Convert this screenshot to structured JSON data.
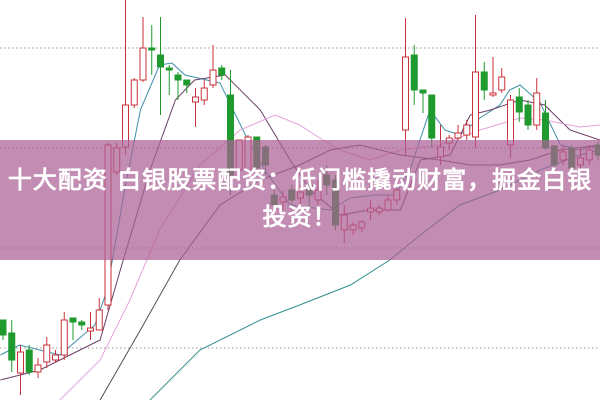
{
  "banner": {
    "title": "十大配资 白银股票配资：低门槛撬动财富，掘金白银投资！"
  },
  "chart_data": {
    "type": "candlestick",
    "title": "",
    "xlabel": "",
    "ylabel": "",
    "grid": "horizontal dotted",
    "colors": {
      "up": "#c8303a",
      "down": "#1f9a2e",
      "ma_lines": [
        "#3b8fa8",
        "#6b3d66",
        "#e3a2dc",
        "#5a4c55",
        "#2f8f8f"
      ],
      "banner": "#ac6096"
    },
    "candles_ohlc": [
      [
        80,
        80,
        60,
        65
      ],
      [
        67,
        80,
        28,
        40
      ],
      [
        27,
        55,
        5,
        48
      ],
      [
        50,
        55,
        25,
        28
      ],
      [
        28,
        42,
        22,
        35
      ],
      [
        38,
        63,
        32,
        55
      ],
      [
        40,
        50,
        38,
        45
      ],
      [
        45,
        88,
        40,
        80
      ],
      [
        82,
        82,
        60,
        78
      ],
      [
        78,
        80,
        70,
        75
      ],
      [
        69,
        88,
        60,
        72
      ],
      [
        70,
        102,
        70,
        90
      ],
      [
        95,
        257,
        90,
        255
      ],
      [
        228,
        257,
        225,
        252
      ],
      [
        253,
        400,
        245,
        295
      ],
      [
        295,
        322,
        292,
        320
      ],
      [
        320,
        383,
        318,
        352
      ],
      [
        352,
        375,
        325,
        350
      ],
      [
        345,
        383,
        285,
        333
      ],
      [
        332,
        335,
        305,
        330
      ],
      [
        325,
        328,
        300,
        320
      ],
      [
        320,
        320,
        307,
        315
      ],
      [
        298,
        312,
        273,
        303
      ],
      [
        300,
        320,
        295,
        312
      ],
      [
        315,
        355,
        312,
        330
      ],
      [
        332,
        335,
        320,
        325
      ],
      [
        305,
        330,
        205,
        225
      ],
      [
        230,
        260,
        225,
        260
      ],
      [
        230,
        265,
        230,
        263
      ],
      [
        263,
        263,
        228,
        232
      ],
      [
        253,
        255,
        225,
        235
      ],
      [
        205,
        210,
        190,
        195
      ],
      [
        198,
        210,
        190,
        203
      ],
      [
        210,
        215,
        195,
        200
      ],
      [
        202,
        215,
        195,
        208
      ],
      [
        215,
        220,
        190,
        205
      ],
      [
        200,
        220,
        195,
        210
      ],
      [
        225,
        235,
        205,
        215
      ],
      [
        220,
        225,
        170,
        175
      ],
      [
        170,
        195,
        157,
        185
      ],
      [
        170,
        178,
        165,
        175
      ],
      [
        172,
        180,
        168,
        178
      ],
      [
        188,
        200,
        180,
        192
      ],
      [
        188,
        195,
        185,
        192
      ],
      [
        190,
        205,
        188,
        200
      ],
      [
        200,
        212,
        195,
        210
      ],
      [
        270,
        382,
        245,
        343
      ],
      [
        345,
        355,
        295,
        310
      ],
      [
        310,
        310,
        287,
        307
      ],
      [
        305,
        305,
        252,
        262
      ],
      [
        243,
        275,
        235,
        253
      ],
      [
        257,
        265,
        250,
        262
      ],
      [
        262,
        275,
        260,
        267
      ],
      [
        265,
        280,
        260,
        275
      ],
      [
        263,
        385,
        252,
        328
      ],
      [
        328,
        338,
        300,
        310
      ],
      [
        305,
        343,
        303,
        307
      ],
      [
        310,
        332,
        307,
        323
      ],
      [
        255,
        305,
        242,
        300
      ],
      [
        303,
        312,
        278,
        288
      ],
      [
        295,
        300,
        270,
        275
      ],
      [
        275,
        322,
        270,
        307
      ],
      [
        287,
        300,
        250,
        252
      ],
      [
        254,
        255,
        230,
        235
      ],
      [
        240,
        255,
        235,
        248
      ],
      [
        252,
        255,
        228,
        232
      ],
      [
        235,
        252,
        230,
        242
      ],
      [
        240,
        255,
        235,
        250
      ],
      [
        255,
        258,
        240,
        245
      ]
    ],
    "moving_averages": [
      [
        [
          -0.3,
          45
        ],
        [
          1.9,
          55
        ],
        [
          6.5,
          45
        ],
        [
          10.5,
          75
        ],
        [
          11.9,
          110
        ],
        [
          13.9,
          210
        ],
        [
          15.7,
          290
        ],
        [
          17.9,
          335
        ],
        [
          19.3,
          337
        ],
        [
          20.8,
          325
        ],
        [
          24.8,
          317
        ],
        [
          27.7,
          265
        ],
        [
          29.9,
          230
        ],
        [
          32.8,
          195
        ],
        [
          37.4,
          190
        ],
        [
          39.7,
          202
        ],
        [
          42.5,
          205
        ],
        [
          44.8,
          205
        ],
        [
          46.5,
          230
        ],
        [
          48.8,
          290
        ],
        [
          50.5,
          270
        ],
        [
          52.2,
          265
        ],
        [
          54.5,
          282
        ],
        [
          56.8,
          295
        ],
        [
          57.9,
          310
        ],
        [
          59.1,
          315
        ],
        [
          61.4,
          297
        ],
        [
          63.7,
          255
        ],
        [
          65.9,
          250
        ],
        [
          68.2,
          255
        ]
      ],
      [
        [
          -0.3,
          20
        ],
        [
          4.2,
          30
        ],
        [
          11.1,
          60
        ],
        [
          13.4,
          130
        ],
        [
          16.8,
          230
        ],
        [
          19.7,
          300
        ],
        [
          21.9,
          320
        ],
        [
          25.4,
          325
        ],
        [
          29.4,
          290
        ],
        [
          32.8,
          240
        ],
        [
          35.1,
          210
        ],
        [
          38.5,
          185
        ],
        [
          41.9,
          190
        ],
        [
          45.4,
          190
        ],
        [
          47.7,
          240
        ],
        [
          51.1,
          245
        ],
        [
          53.4,
          285
        ],
        [
          55.7,
          290
        ],
        [
          59.1,
          300
        ],
        [
          61.9,
          295
        ],
        [
          64.8,
          270
        ],
        [
          68.2,
          260
        ]
      ],
      [
        [
          6.5,
          0
        ],
        [
          11.1,
          40
        ],
        [
          14.5,
          100
        ],
        [
          17.9,
          170
        ],
        [
          22.5,
          235
        ],
        [
          27.1,
          270
        ],
        [
          31.1,
          285
        ],
        [
          33.9,
          275
        ],
        [
          36.2,
          262
        ],
        [
          38.5,
          250
        ],
        [
          41.9,
          240
        ],
        [
          45.4,
          250
        ],
        [
          49.9,
          255
        ],
        [
          54.5,
          270
        ],
        [
          59.1,
          282
        ],
        [
          61.9,
          280
        ],
        [
          65.9,
          273
        ],
        [
          68.2,
          275
        ]
      ],
      [
        [
          11.1,
          0
        ],
        [
          15.7,
          70
        ],
        [
          20.2,
          140
        ],
        [
          24.8,
          195
        ],
        [
          29.4,
          220
        ],
        [
          33.9,
          235
        ],
        [
          37.4,
          250
        ],
        [
          40.8,
          255
        ],
        [
          45.4,
          245
        ],
        [
          49.9,
          240
        ],
        [
          53.4,
          235
        ],
        [
          56.8,
          235
        ],
        [
          60.2,
          240
        ],
        [
          63.7,
          250
        ],
        [
          68.2,
          255
        ]
      ],
      [
        [
          16.8,
          0
        ],
        [
          22.5,
          50
        ],
        [
          29.4,
          80
        ],
        [
          33.9,
          95
        ],
        [
          39.7,
          115
        ],
        [
          44.2,
          140
        ],
        [
          47.7,
          165
        ],
        [
          52.2,
          195
        ],
        [
          56.8,
          210
        ],
        [
          61.4,
          230
        ],
        [
          65.9,
          245
        ],
        [
          68.2,
          250
        ]
      ]
    ]
  }
}
